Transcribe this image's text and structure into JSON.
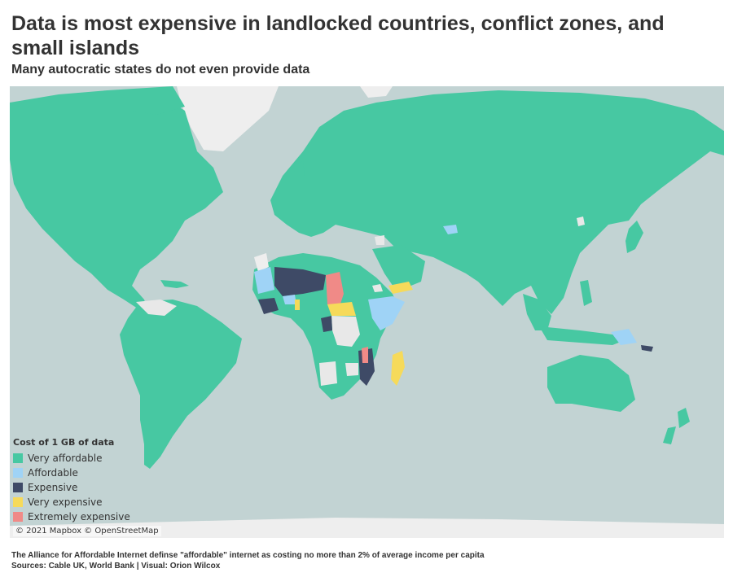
{
  "title": "Data is most expensive in landlocked countries, conflict zones, and small islands",
  "subtitle": "Many autocratic states do not even provide data",
  "legend": {
    "title": "Cost of 1 GB of data",
    "items": [
      {
        "label": "Very affordable",
        "color": "#47c8a2"
      },
      {
        "label": "Affordable",
        "color": "#9fd3f6"
      },
      {
        "label": "Expensive",
        "color": "#3e4a66"
      },
      {
        "label": "Very expensive",
        "color": "#f6da5a"
      },
      {
        "label": "Extremely expensive",
        "color": "#f08a87"
      }
    ]
  },
  "colors": {
    "ocean": "#c2d3d3",
    "no_data": "#e8e8e8",
    "ice": "#f2f2f2"
  },
  "attribution": "© 2021 Mapbox © OpenStreetMap",
  "footer": {
    "note": "The Alliance for Affordable Internet definse \"affordable\" internet as costing no more than 2% of average income per capita",
    "sources": "Sources: Cable UK, World Bank | Visual: Orion Wilcox"
  }
}
